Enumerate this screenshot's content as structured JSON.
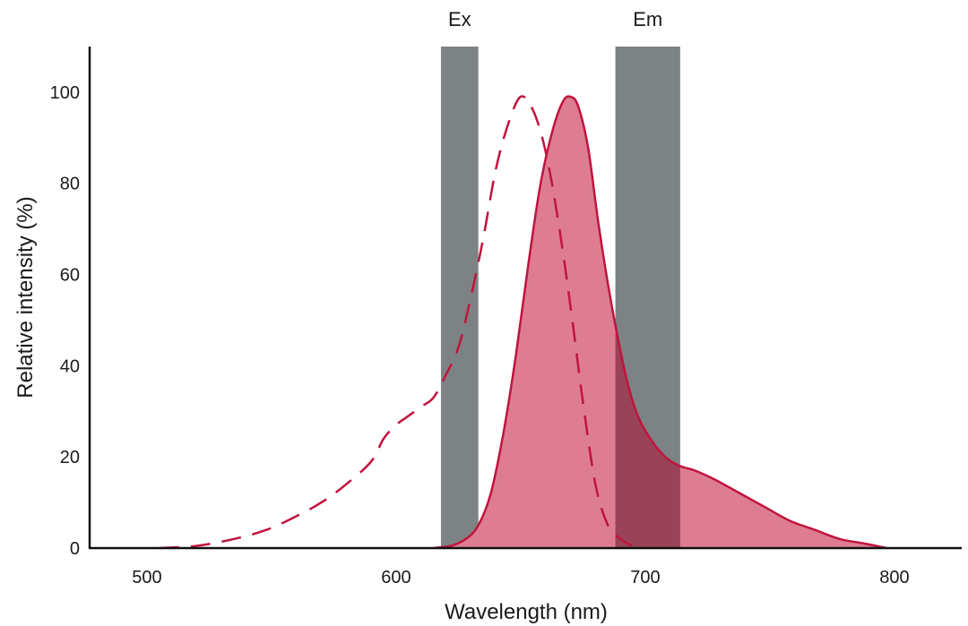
{
  "chart_data": {
    "type": "area",
    "title": "",
    "xlabel": "Wavelength (nm)",
    "ylabel": "Relative intensity (%)",
    "xlim": [
      477,
      827
    ],
    "ylim": [
      0,
      110
    ],
    "x_ticks": [
      500,
      600,
      700,
      800
    ],
    "y_ticks": [
      0,
      20,
      40,
      60,
      80,
      100
    ],
    "grid": false,
    "bands": [
      {
        "label": "Ex",
        "from": 618,
        "to": 633,
        "color": "#7d8385"
      },
      {
        "label": "Em",
        "from": 688,
        "to": 714,
        "color": "#7d8385"
      }
    ],
    "series": [
      {
        "style": "dashed",
        "color": "#c0143c",
        "points": [
          [
            505,
            0
          ],
          [
            520,
            0.5
          ],
          [
            535,
            2
          ],
          [
            548,
            4
          ],
          [
            560,
            7
          ],
          [
            570,
            10
          ],
          [
            580,
            14
          ],
          [
            590,
            19
          ],
          [
            595,
            24
          ],
          [
            600,
            27
          ],
          [
            605,
            29
          ],
          [
            610,
            31
          ],
          [
            615,
            33
          ],
          [
            620,
            38
          ],
          [
            625,
            44
          ],
          [
            630,
            55
          ],
          [
            635,
            68
          ],
          [
            640,
            83
          ],
          [
            645,
            93
          ],
          [
            650,
            99
          ],
          [
            655,
            96
          ],
          [
            660,
            87
          ],
          [
            665,
            72
          ],
          [
            670,
            53
          ],
          [
            675,
            32
          ],
          [
            680,
            14
          ],
          [
            685,
            5
          ],
          [
            690,
            2
          ],
          [
            695,
            0.5
          ],
          [
            700,
            0
          ]
        ]
      },
      {
        "style": "filled",
        "color": "#c0143c",
        "fill": "#de7d92",
        "points": [
          [
            615,
            0
          ],
          [
            622,
            0.5
          ],
          [
            628,
            2
          ],
          [
            633,
            5
          ],
          [
            638,
            12
          ],
          [
            643,
            25
          ],
          [
            648,
            42
          ],
          [
            653,
            62
          ],
          [
            658,
            80
          ],
          [
            663,
            92
          ],
          [
            667,
            98
          ],
          [
            670,
            99
          ],
          [
            673,
            97
          ],
          [
            677,
            88
          ],
          [
            681,
            72
          ],
          [
            685,
            58
          ],
          [
            689,
            46
          ],
          [
            693,
            36
          ],
          [
            697,
            29
          ],
          [
            702,
            24
          ],
          [
            708,
            20
          ],
          [
            714,
            18
          ],
          [
            720,
            17
          ],
          [
            728,
            15
          ],
          [
            738,
            12
          ],
          [
            748,
            9
          ],
          [
            758,
            6
          ],
          [
            768,
            4
          ],
          [
            778,
            2
          ],
          [
            788,
            1
          ],
          [
            797,
            0
          ]
        ]
      }
    ]
  }
}
